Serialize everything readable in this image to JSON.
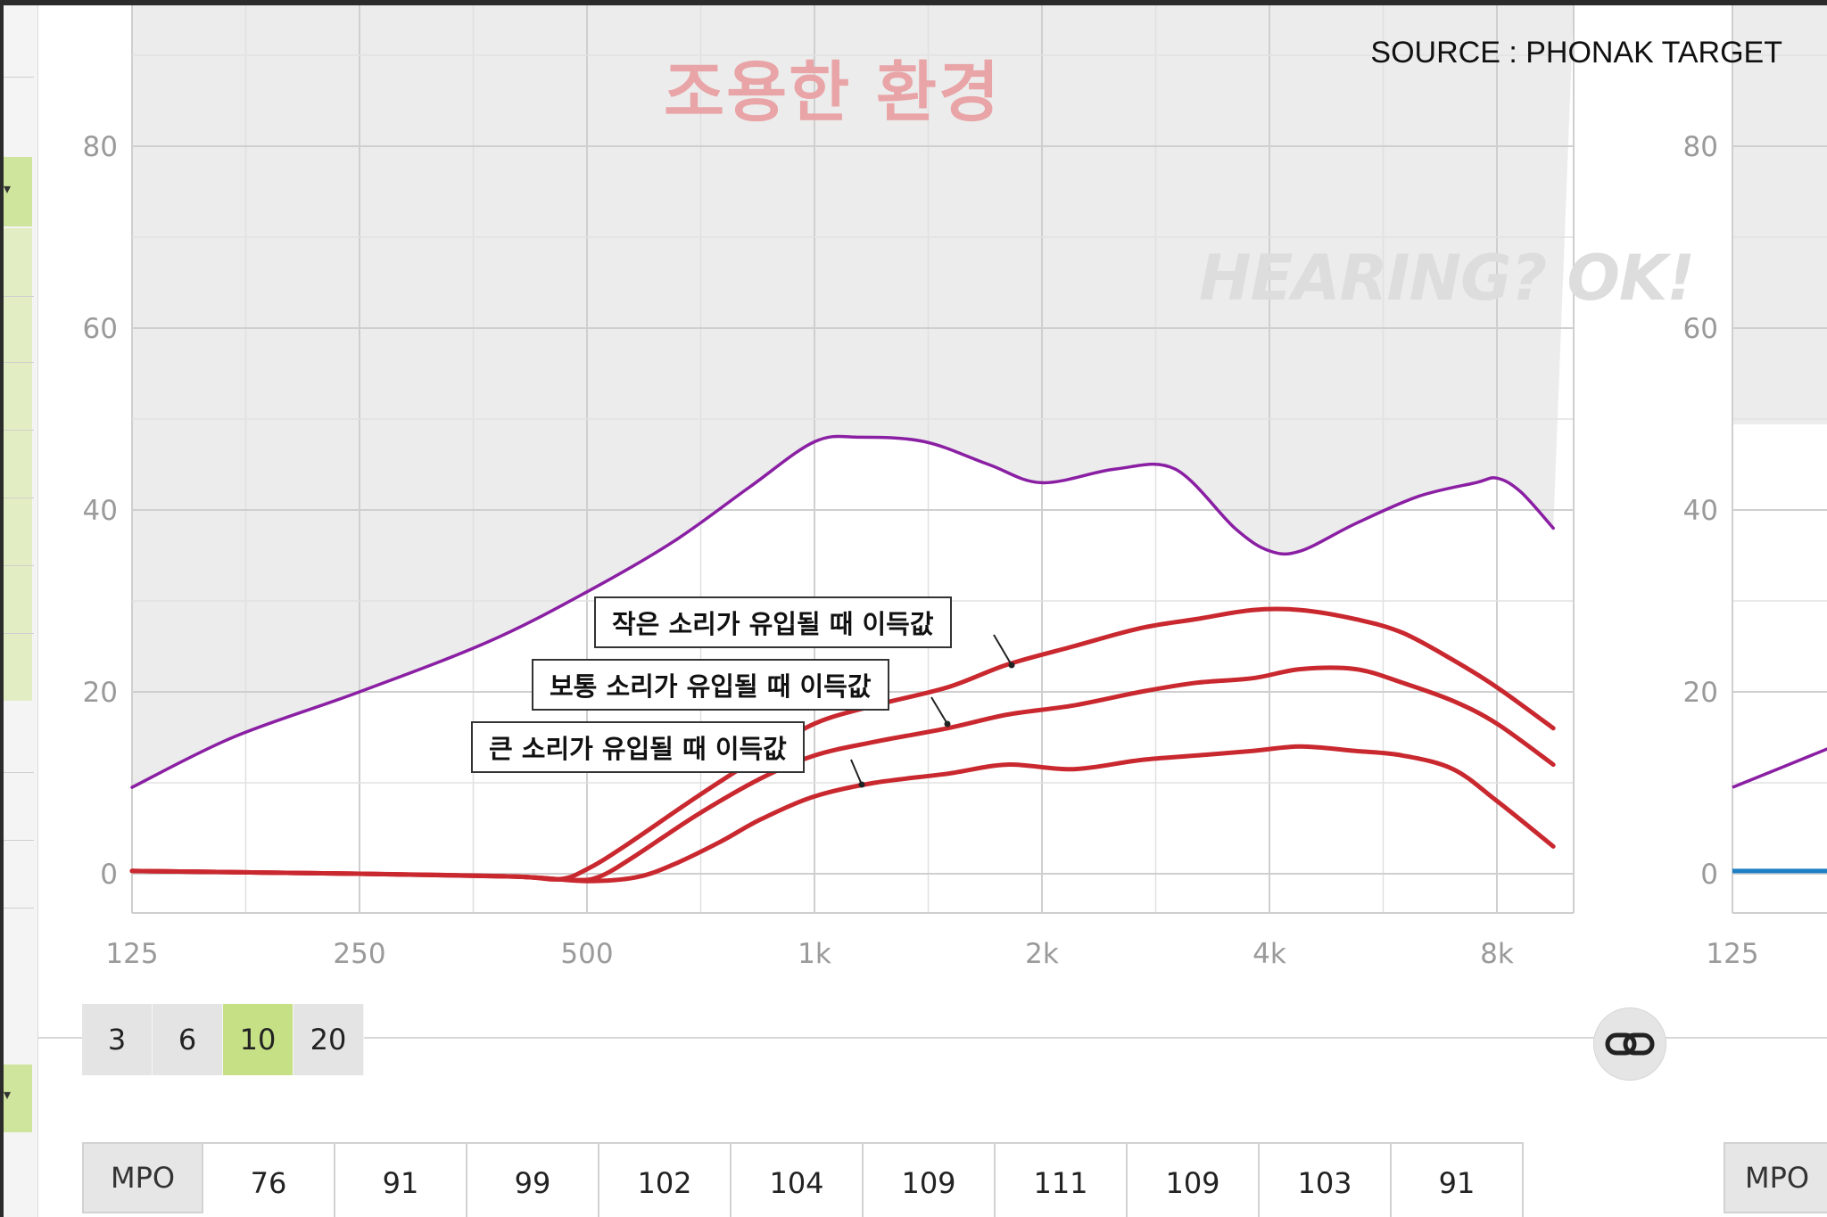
{
  "source": "SOURCE : PHONAK TARGET",
  "scenario_title": "조용한 환경",
  "watermark": "HEARING? OK!",
  "callouts": {
    "soft": "작은 소리가 유입될 때 이득값",
    "medium": "보통 소리가 유입될 때 이득값",
    "loud": "큰 소리가 유입될 때 이득값"
  },
  "smoothing": {
    "options": [
      "3",
      "6",
      "10",
      "20"
    ],
    "selected": "10"
  },
  "mpo": {
    "label": "MPO",
    "values": [
      "76",
      "91",
      "99",
      "102",
      "104",
      "109",
      "111",
      "109",
      "103",
      "91"
    ]
  },
  "right_panel": {
    "mpo_label": "MPO"
  },
  "colors": {
    "gain_curve": "#c9282f",
    "mpo_curve": "#8a1fa3",
    "plot_shade": "#ececec",
    "active_button": "#c5e085",
    "right_zero_line": "#1d7fc4"
  },
  "icons": {
    "link": "link-icon"
  },
  "chart_data": {
    "type": "line",
    "x_scale": "log2",
    "x_tick_labels": [
      "125",
      "250",
      "500",
      "1k",
      "2k",
      "4k",
      "8k"
    ],
    "x_tick_values": [
      125,
      250,
      500,
      1000,
      2000,
      4000,
      8000
    ],
    "xlim": [
      125,
      9600
    ],
    "y_tick_labels": [
      "0",
      "20",
      "40",
      "60",
      "80"
    ],
    "ylim": [
      -5,
      95
    ],
    "grid": true,
    "series": [
      {
        "key": "mpo",
        "color": "#8a1fa3",
        "points": [
          [
            125,
            9.5
          ],
          [
            170,
            15
          ],
          [
            250,
            20
          ],
          [
            370,
            25.5
          ],
          [
            500,
            31
          ],
          [
            650,
            36.5
          ],
          [
            820,
            42.5
          ],
          [
            1000,
            47.5
          ],
          [
            1150,
            48
          ],
          [
            1400,
            47.5
          ],
          [
            1700,
            45
          ],
          [
            2000,
            43
          ],
          [
            2500,
            44.5
          ],
          [
            3000,
            44.5
          ],
          [
            3600,
            38
          ],
          [
            4000,
            35.5
          ],
          [
            4400,
            35.5
          ],
          [
            5200,
            38.5
          ],
          [
            6300,
            41.5
          ],
          [
            7500,
            43
          ],
          [
            8000,
            43.5
          ],
          [
            8600,
            42
          ],
          [
            9500,
            38
          ]
        ]
      },
      {
        "key": "soft",
        "color": "#c9282f",
        "points": [
          [
            125,
            0.3
          ],
          [
            250,
            0
          ],
          [
            400,
            -0.3
          ],
          [
            460,
            -0.6
          ],
          [
            500,
            0.5
          ],
          [
            560,
            3
          ],
          [
            700,
            8.5
          ],
          [
            850,
            13
          ],
          [
            1000,
            16.5
          ],
          [
            1200,
            18.5
          ],
          [
            1500,
            20.5
          ],
          [
            1800,
            23
          ],
          [
            2200,
            25
          ],
          [
            2700,
            27
          ],
          [
            3200,
            28
          ],
          [
            3800,
            29
          ],
          [
            4400,
            29
          ],
          [
            5200,
            28
          ],
          [
            6000,
            26.5
          ],
          [
            7000,
            23.5
          ],
          [
            8000,
            20.5
          ],
          [
            9500,
            16
          ]
        ]
      },
      {
        "key": "medium",
        "color": "#c9282f",
        "points": [
          [
            125,
            0.3
          ],
          [
            250,
            0
          ],
          [
            400,
            -0.3
          ],
          [
            480,
            -0.7
          ],
          [
            520,
            -0.3
          ],
          [
            580,
            2
          ],
          [
            700,
            6.5
          ],
          [
            850,
            10.5
          ],
          [
            1000,
            13
          ],
          [
            1200,
            14.5
          ],
          [
            1500,
            16
          ],
          [
            1800,
            17.5
          ],
          [
            2200,
            18.5
          ],
          [
            2700,
            20
          ],
          [
            3200,
            21
          ],
          [
            3800,
            21.5
          ],
          [
            4400,
            22.5
          ],
          [
            5200,
            22.5
          ],
          [
            6000,
            21
          ],
          [
            7000,
            19
          ],
          [
            8000,
            16.5
          ],
          [
            9500,
            12
          ]
        ]
      },
      {
        "key": "loud",
        "color": "#c9282f",
        "points": [
          [
            125,
            0.3
          ],
          [
            250,
            0
          ],
          [
            400,
            -0.3
          ],
          [
            500,
            -0.8
          ],
          [
            580,
            -0.4
          ],
          [
            650,
            1
          ],
          [
            750,
            3.5
          ],
          [
            850,
            6
          ],
          [
            1000,
            8.5
          ],
          [
            1200,
            10
          ],
          [
            1500,
            11
          ],
          [
            1800,
            12
          ],
          [
            2200,
            11.5
          ],
          [
            2700,
            12.5
          ],
          [
            3200,
            13
          ],
          [
            3800,
            13.5
          ],
          [
            4400,
            14
          ],
          [
            5200,
            13.5
          ],
          [
            6000,
            13
          ],
          [
            7000,
            11.5
          ],
          [
            8000,
            8
          ],
          [
            9500,
            3
          ]
        ]
      }
    ],
    "secondary_panel": {
      "x_tick_labels": [
        "125"
      ],
      "y_tick_labels": [
        "0",
        "20",
        "40",
        "60",
        "80"
      ],
      "series": [
        {
          "key": "mpo",
          "color": "#8a1fa3",
          "points": [
            [
              125,
              9.5
            ],
            [
              170,
              14
            ]
          ]
        },
        {
          "key": "zero",
          "color": "#1d7fc4",
          "points": [
            [
              125,
              0.3
            ],
            [
              170,
              0.3
            ]
          ]
        }
      ]
    }
  }
}
